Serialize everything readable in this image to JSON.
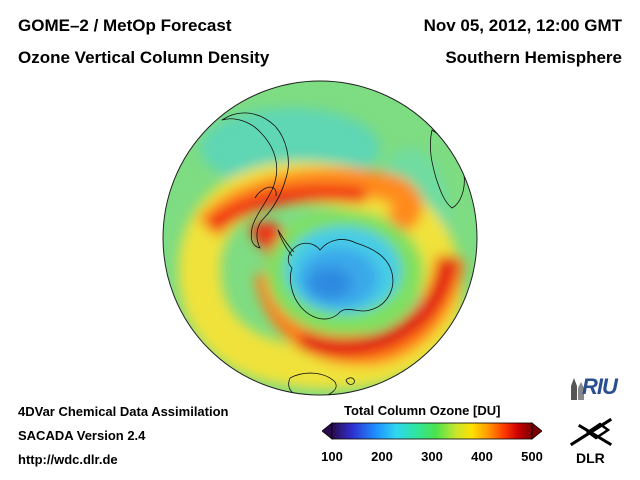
{
  "header": {
    "title_line1": "GOME–2 / MetOp Forecast",
    "title_line2": "Ozone Vertical Column Density",
    "date": "Nov 05, 2012, 12:00 GMT",
    "hemisphere": "Southern Hemisphere"
  },
  "footer": {
    "line1": "4DVar Chemical Data Assimilation",
    "line2": "SACADA Version 2.4",
    "line3": "http://wdc.dlr.de"
  },
  "colorbar": {
    "title": "Total Column Ozone [DU]",
    "ticks": [
      "100",
      "200",
      "300",
      "400",
      "500"
    ],
    "range": [
      100,
      500
    ],
    "colors": [
      "#2a0a4e",
      "#2f2fd0",
      "#1e90ff",
      "#2fd6f0",
      "#2ee6a0",
      "#4ce24c",
      "#c8e62c",
      "#ffe000",
      "#ff9a00",
      "#ff3a00",
      "#cc0000",
      "#7a0000"
    ]
  },
  "logos": {
    "riu": "RIU",
    "dlr": "DLR"
  },
  "map": {
    "projection": "orthographic, south pole view",
    "background_color": "#7fdc7f"
  }
}
